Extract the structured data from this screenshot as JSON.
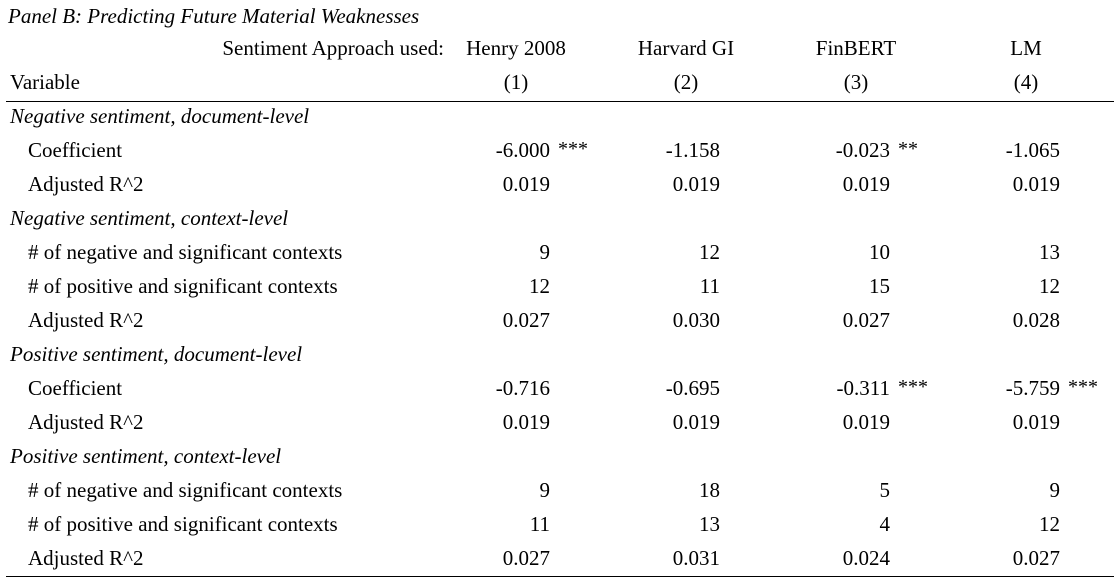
{
  "panel_title": "Panel B: Predicting Future Material Weaknesses",
  "header": {
    "approach_label": "Sentiment Approach used:",
    "variable_label": "Variable",
    "columns": [
      {
        "name": "Henry 2008",
        "num": "(1)"
      },
      {
        "name": "Harvard GI",
        "num": "(2)"
      },
      {
        "name": "FinBERT",
        "num": "(3)"
      },
      {
        "name": "LM",
        "num": "(4)"
      }
    ]
  },
  "sections": [
    {
      "title": "Negative sentiment, document-level",
      "rows": [
        {
          "label": "Coefficient",
          "values": [
            "-6.000",
            "-1.158",
            "-0.023",
            "-1.065"
          ],
          "stars": [
            "***",
            "",
            "**",
            ""
          ]
        },
        {
          "label": "Adjusted R^2",
          "values": [
            "0.019",
            "0.019",
            "0.019",
            "0.019"
          ],
          "stars": [
            "",
            "",
            "",
            ""
          ]
        }
      ]
    },
    {
      "title": "Negative sentiment, context-level",
      "rows": [
        {
          "label": "# of negative and significant contexts",
          "values": [
            "9",
            "12",
            "10",
            "13"
          ],
          "stars": [
            "",
            "",
            "",
            ""
          ]
        },
        {
          "label": "# of positive and significant contexts",
          "values": [
            "12",
            "11",
            "15",
            "12"
          ],
          "stars": [
            "",
            "",
            "",
            ""
          ]
        },
        {
          "label": "Adjusted R^2",
          "values": [
            "0.027",
            "0.030",
            "0.027",
            "0.028"
          ],
          "stars": [
            "",
            "",
            "",
            ""
          ]
        }
      ]
    },
    {
      "title": "Positive sentiment, document-level",
      "rows": [
        {
          "label": "Coefficient",
          "values": [
            "-0.716",
            "-0.695",
            "-0.311",
            "-5.759"
          ],
          "stars": [
            "",
            "",
            "***",
            "***"
          ]
        },
        {
          "label": "Adjusted R^2",
          "values": [
            "0.019",
            "0.019",
            "0.019",
            "0.019"
          ],
          "stars": [
            "",
            "",
            "",
            ""
          ]
        }
      ]
    },
    {
      "title": "Positive sentiment, context-level",
      "rows": [
        {
          "label": "# of negative and significant contexts",
          "values": [
            "9",
            "18",
            "5",
            "9"
          ],
          "stars": [
            "",
            "",
            "",
            ""
          ]
        },
        {
          "label": "# of positive and significant contexts",
          "values": [
            "11",
            "13",
            "4",
            "12"
          ],
          "stars": [
            "",
            "",
            "",
            ""
          ]
        },
        {
          "label": "Adjusted R^2",
          "values": [
            "0.027",
            "0.031",
            "0.024",
            "0.027"
          ],
          "stars": [
            "",
            "",
            "",
            ""
          ]
        }
      ]
    }
  ]
}
